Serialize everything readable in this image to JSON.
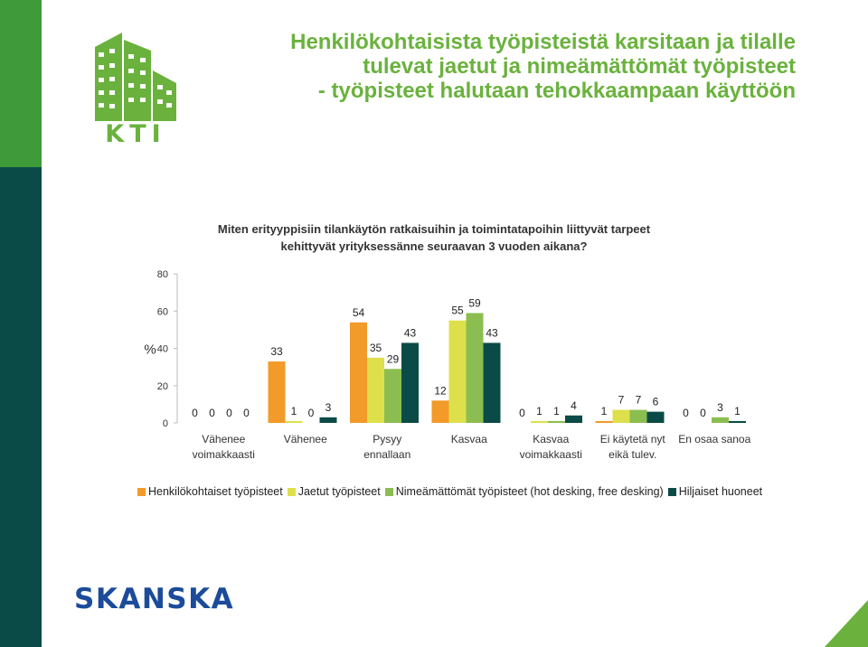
{
  "brand": {
    "kti_text": "KTI",
    "skanska_text": "SKANSKA"
  },
  "title": {
    "lines": [
      "Henkilökohtaisista työpisteistä karsitaan ja tilalle",
      "tulevat jaetut ja nimeämättömät työpisteet",
      "- työpisteet halutaan tehokkaampaan käyttöön"
    ]
  },
  "question": {
    "line1": "Miten erityyppisiin tilankäytön ratkaisuihin ja toimintatapoihin liittyvät tarpeet",
    "line2": "kehittyvät yrityksessänne seuraavan 3 vuoden aikana?"
  },
  "colors": {
    "title": "#6ab23d",
    "series": [
      "#f29a2a",
      "#dde04a",
      "#8cbd51",
      "#0b4b47"
    ]
  },
  "chart_data": {
    "type": "bar",
    "ylabel": "%",
    "ylim": [
      0,
      80
    ],
    "yticks": [
      0,
      20,
      40,
      60,
      80
    ],
    "grid": false,
    "legend_position": "bottom",
    "categories": [
      [
        "Vähenee",
        "voimakkaasti"
      ],
      [
        "Vähenee"
      ],
      [
        "Pysyy",
        "ennallaan"
      ],
      [
        "Kasvaa"
      ],
      [
        "Kasvaa",
        "voimakkaasti"
      ],
      [
        "Ei käytetä nyt",
        "eikä tulev."
      ],
      [
        "En osaa sanoa"
      ]
    ],
    "series": [
      {
        "name": "Henkilökohtaiset työpisteet",
        "values": [
          0,
          33,
          54,
          12,
          0,
          1,
          0
        ]
      },
      {
        "name": "Jaetut työpisteet",
        "values": [
          0,
          1,
          35,
          55,
          1,
          7,
          0
        ]
      },
      {
        "name": "Nimeämättömät työpisteet (hot desking, free desking)",
        "values": [
          0,
          0,
          29,
          59,
          1,
          7,
          3
        ]
      },
      {
        "name": "Hiljaiset huoneet",
        "values": [
          0,
          3,
          43,
          43,
          4,
          6,
          1
        ]
      }
    ]
  }
}
